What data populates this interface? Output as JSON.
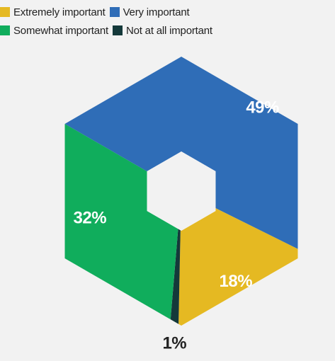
{
  "chart_data": {
    "type": "pie",
    "categories": [
      "Extremely important",
      "Very important",
      "Somewhat important",
      "Not at all important"
    ],
    "values": [
      18,
      49,
      32,
      1
    ],
    "labels": [
      "18%",
      "49%",
      "32%",
      "1%"
    ],
    "colors": [
      "#e5b922",
      "#2f6db7",
      "#10ad5c",
      "#14393a"
    ],
    "shape": "hexagon donut",
    "legend": "top-left"
  }
}
